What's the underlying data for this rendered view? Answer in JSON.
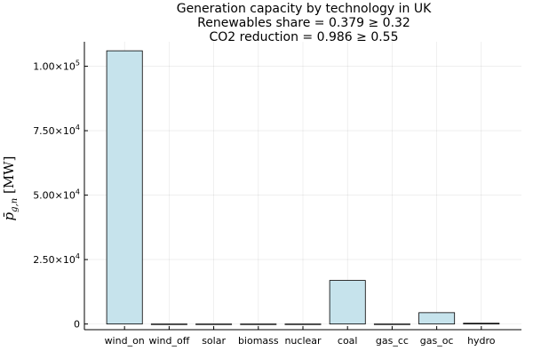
{
  "chart_data": {
    "type": "bar",
    "title": {
      "line1": "Generation capacity by technology in UK",
      "line2": "Renewables share = 0.379 ≥ 0.32",
      "line3": "CO2 reduction = 0.986 ≥ 0.55"
    },
    "xlabel": "",
    "ylabel": "p̄g,n [MW]",
    "categories": [
      "wind_on",
      "wind_off",
      "solar",
      "biomass",
      "nuclear",
      "coal",
      "gas_cc",
      "gas_oc",
      "hydro"
    ],
    "values": [
      106000,
      0,
      0,
      0,
      0,
      16900,
      0,
      4400,
      300
    ],
    "ylim": [
      -2200,
      109500
    ],
    "yticks": [
      {
        "value": 0,
        "label": "0"
      },
      {
        "value": 25000,
        "mantissa": "2.50×10",
        "exp": "4"
      },
      {
        "value": 50000,
        "mantissa": "5.00×10",
        "exp": "4"
      },
      {
        "value": 75000,
        "mantissa": "7.50×10",
        "exp": "4"
      },
      {
        "value": 100000,
        "mantissa": "1.00×10",
        "exp": "5"
      }
    ],
    "grid": true,
    "legend": "none",
    "bar_color": "#c6e3ec",
    "edge_color": "#000000"
  }
}
